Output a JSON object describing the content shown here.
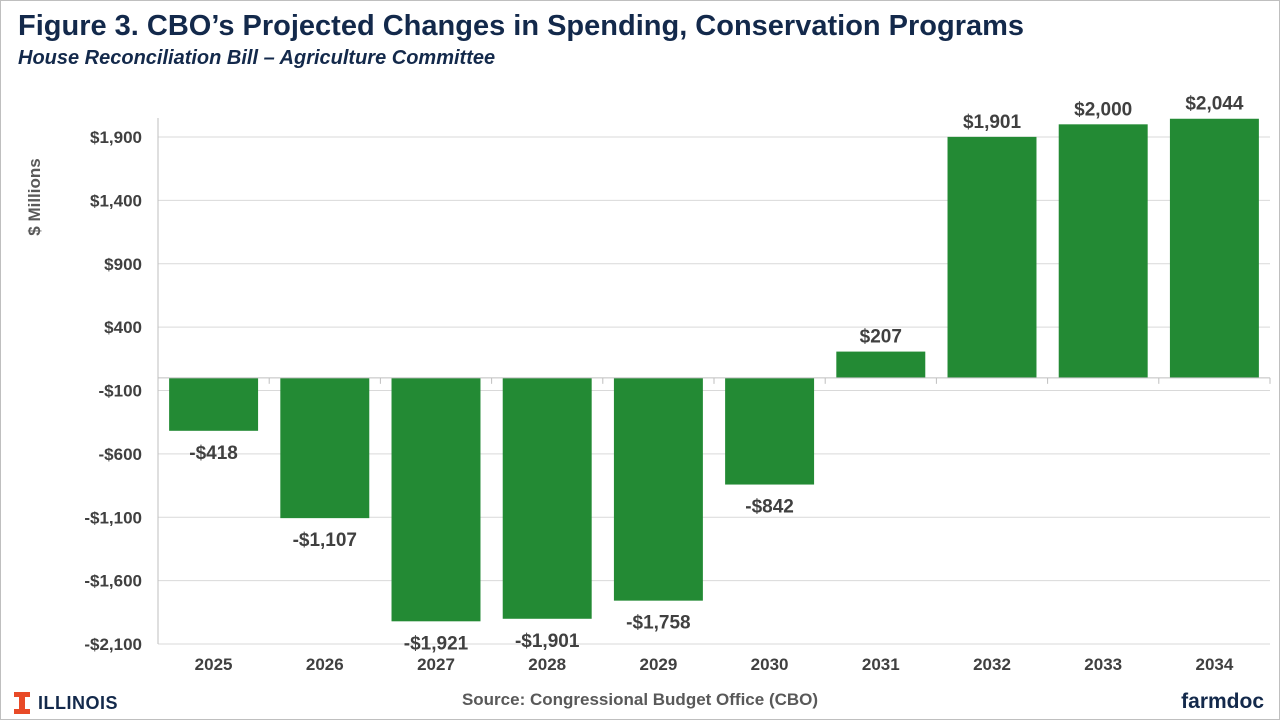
{
  "header": {
    "title": "Figure 3. CBO’s Projected Changes in Spending, Conservation Programs",
    "subtitle": "House Reconciliation Bill – Agriculture Committee"
  },
  "footer": {
    "source": "Source: Congressional Budget Office (CBO)",
    "illinois_logo": "ILLINOIS",
    "farmdoc_logo": "farmdoc"
  },
  "colors": {
    "bar": "#238a34",
    "title": "#13294b",
    "illinois_orange": "#e84a27"
  },
  "chart_data": {
    "type": "bar",
    "title": "Figure 3. CBO’s Projected Changes in Spending, Conservation Programs",
    "subtitle": "House Reconciliation Bill – Agriculture Committee",
    "ylabel": "$ Millions",
    "xlabel": "",
    "categories": [
      "2025",
      "2026",
      "2027",
      "2028",
      "2029",
      "2030",
      "2031",
      "2032",
      "2033",
      "2034"
    ],
    "values": [
      -418,
      -1107,
      -1921,
      -1901,
      -1758,
      -842,
      207,
      1901,
      2000,
      2044
    ],
    "data_labels": [
      "-$418",
      "-$1,107",
      "-$1,921",
      "-$1,901",
      "-$1,758",
      "-$842",
      "$207",
      "$1,901",
      "$2,000",
      "$2,044"
    ],
    "yticks": [
      1900,
      1400,
      900,
      400,
      -100,
      -600,
      -1100,
      -1600,
      -2100
    ],
    "ytick_labels": [
      "$1,900",
      "$1,400",
      "$900",
      "$400",
      "-$100",
      "-$600",
      "-$1,100",
      "-$1,600",
      "-$2,100"
    ],
    "ylim": [
      -2100,
      2200
    ],
    "grid": true,
    "legend": "none"
  }
}
